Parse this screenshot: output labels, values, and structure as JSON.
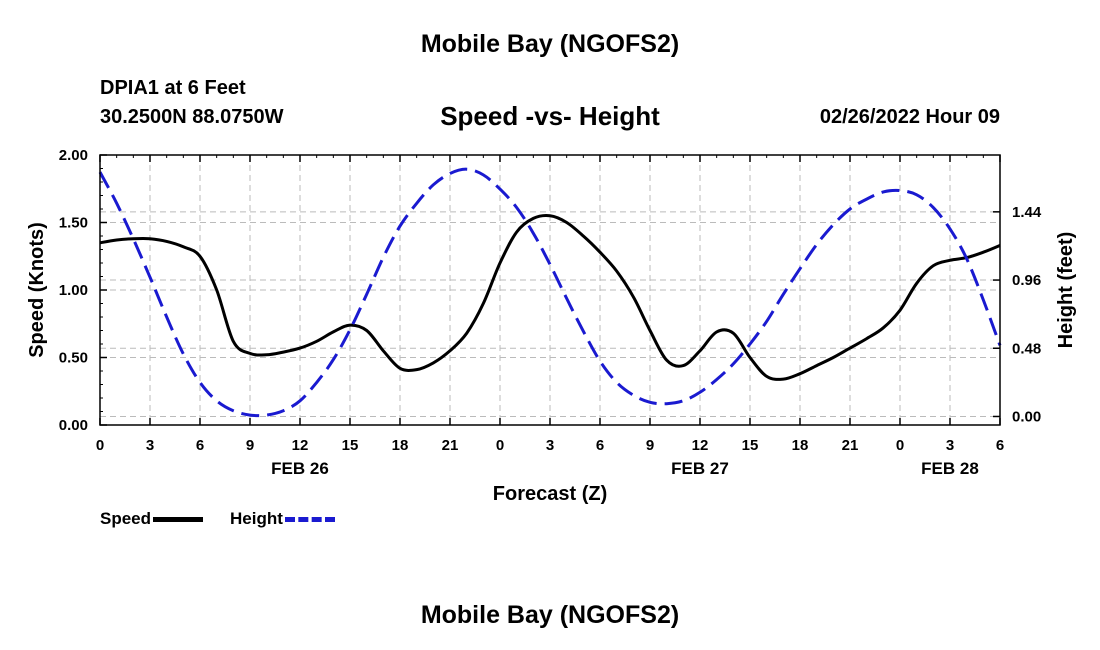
{
  "header": {
    "title": "Mobile Bay (NGOFS2)",
    "station": "DPIA1 at 6 Feet",
    "coords": "30.2500N  88.0750W",
    "timestamp": "02/26/2022 Hour 09"
  },
  "footer": {
    "title": "Mobile Bay (NGOFS2)"
  },
  "colors": {
    "speed": "#000000",
    "height": "#1a1ad0",
    "grid": "#bbbbbb"
  },
  "chart_data": {
    "type": "line",
    "title": "Speed -vs- Height",
    "xlabel": "Forecast (Z)",
    "ylabel": "Speed (Knots)",
    "y2label": "Height (feet)",
    "xlim": [
      0,
      54
    ],
    "ylim": [
      0,
      2.0
    ],
    "y2lim": [
      -0.06,
      1.84
    ],
    "x_tick_labels": [
      "0",
      "3",
      "6",
      "9",
      "12",
      "15",
      "18",
      "21",
      "0",
      "3",
      "6",
      "9",
      "12",
      "15",
      "18",
      "21",
      "0",
      "3",
      "6"
    ],
    "y_ticks": [
      "0.00",
      "0.50",
      "1.00",
      "1.50",
      "2.00"
    ],
    "y2_ticks": [
      "0.00",
      "0.48",
      "0.96",
      "1.44"
    ],
    "date_labels": [
      {
        "label": "FEB 26",
        "x": 12
      },
      {
        "label": "FEB 27",
        "x": 36
      },
      {
        "label": "FEB 28",
        "x": 51
      }
    ],
    "grid": true,
    "legend_position": "bottom-left",
    "series": [
      {
        "name": "Speed",
        "axis": "left",
        "style": "solid",
        "x": [
          0,
          1,
          2,
          3,
          4,
          5,
          6,
          7,
          8,
          9,
          10,
          11,
          12,
          13,
          14,
          15,
          16,
          17,
          18,
          19,
          20,
          21,
          22,
          23,
          24,
          25,
          26,
          27,
          28,
          29,
          30,
          31,
          32,
          33,
          34,
          35,
          36,
          37,
          38,
          39,
          40,
          41,
          42,
          43,
          44,
          45,
          46,
          47,
          48,
          49,
          50,
          51,
          52,
          53,
          54
        ],
        "values": [
          1.35,
          1.37,
          1.38,
          1.38,
          1.36,
          1.32,
          1.25,
          1.0,
          0.62,
          0.53,
          0.52,
          0.54,
          0.57,
          0.62,
          0.69,
          0.74,
          0.7,
          0.55,
          0.42,
          0.41,
          0.46,
          0.55,
          0.68,
          0.9,
          1.2,
          1.43,
          1.53,
          1.55,
          1.5,
          1.4,
          1.28,
          1.14,
          0.95,
          0.7,
          0.48,
          0.44,
          0.55,
          0.69,
          0.68,
          0.5,
          0.36,
          0.34,
          0.38,
          0.44,
          0.5,
          0.57,
          0.64,
          0.72,
          0.85,
          1.05,
          1.18,
          1.22,
          1.24,
          1.28,
          1.33
        ]
      },
      {
        "name": "Height",
        "axis": "right",
        "style": "dashed",
        "x": [
          0,
          1,
          2,
          3,
          4,
          5,
          6,
          7,
          8,
          9,
          10,
          11,
          12,
          13,
          14,
          15,
          16,
          17,
          18,
          19,
          20,
          21,
          22,
          23,
          24,
          25,
          26,
          27,
          28,
          29,
          30,
          31,
          32,
          33,
          34,
          35,
          36,
          37,
          38,
          39,
          40,
          41,
          42,
          43,
          44,
          45,
          46,
          47,
          48,
          49,
          50,
          51,
          52,
          53,
          54
        ],
        "values": [
          1.72,
          1.5,
          1.25,
          0.98,
          0.7,
          0.44,
          0.24,
          0.11,
          0.04,
          0.01,
          0.01,
          0.04,
          0.11,
          0.24,
          0.4,
          0.61,
          0.86,
          1.12,
          1.34,
          1.5,
          1.63,
          1.71,
          1.74,
          1.7,
          1.6,
          1.47,
          1.29,
          1.07,
          0.83,
          0.6,
          0.39,
          0.24,
          0.15,
          0.1,
          0.09,
          0.11,
          0.17,
          0.26,
          0.37,
          0.51,
          0.67,
          0.86,
          1.04,
          1.21,
          1.35,
          1.46,
          1.53,
          1.58,
          1.59,
          1.56,
          1.47,
          1.32,
          1.11,
          0.82,
          0.5
        ]
      }
    ]
  }
}
